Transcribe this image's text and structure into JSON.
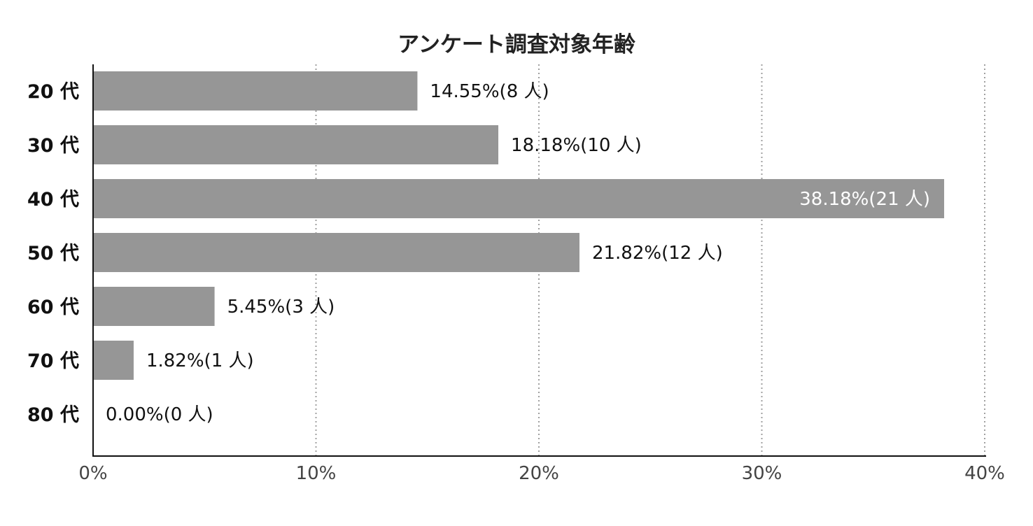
{
  "chart_data": {
    "type": "bar",
    "orientation": "horizontal",
    "title": "アンケート調査対象年齢",
    "categories": [
      "20 代",
      "30 代",
      "40 代",
      "50 代",
      "60 代",
      "70 代",
      "80 代"
    ],
    "values": [
      14.55,
      18.18,
      38.18,
      21.82,
      5.45,
      1.82,
      0.0
    ],
    "data_labels": [
      "14.55%(8 人)",
      "18.18%(10 人)",
      "38.18%(21 人)",
      "21.82%(12 人)",
      "5.45%(3 人)",
      "1.82%(1 人)",
      "0.00%(0 人)"
    ],
    "xlim": [
      0,
      40
    ],
    "xticks": [
      0,
      10,
      20,
      30,
      40
    ],
    "xtick_labels": [
      "0%",
      "10%",
      "20%",
      "30%",
      "40%"
    ],
    "xlabel": "",
    "ylabel": "",
    "grid": "vertical dotted",
    "legend": "none",
    "colors": {
      "bar": "#969696",
      "grid": "#a0a0a0",
      "axis": "#111111"
    }
  }
}
